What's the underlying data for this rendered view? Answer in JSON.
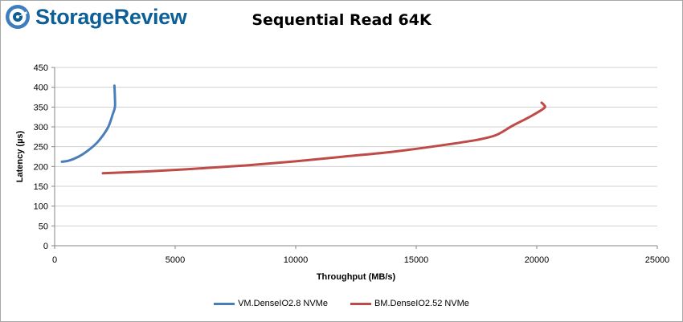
{
  "brand": {
    "name": "StorageReview",
    "color": "#0d5f95"
  },
  "chart_data": {
    "type": "line",
    "title": "Sequential Read 64K",
    "xlabel": "Throughput (MB/s)",
    "ylabel": "Latency (µs)",
    "xlim": [
      0,
      25000
    ],
    "ylim": [
      0,
      450
    ],
    "xticks": [
      0,
      5000,
      10000,
      15000,
      20000,
      25000
    ],
    "yticks": [
      0,
      50,
      100,
      150,
      200,
      250,
      300,
      350,
      400,
      450
    ],
    "grid": true,
    "legend_position": "bottom",
    "series": [
      {
        "name": "VM.DenseIO2.8 NVMe",
        "color": "#4a7ebb",
        "points": [
          [
            300,
            212
          ],
          [
            600,
            215
          ],
          [
            1000,
            225
          ],
          [
            1400,
            241
          ],
          [
            1800,
            263
          ],
          [
            2200,
            297
          ],
          [
            2400,
            330
          ],
          [
            2500,
            350
          ],
          [
            2500,
            375
          ],
          [
            2480,
            404
          ]
        ]
      },
      {
        "name": "BM.DenseIO2.52 NVMe",
        "color": "#be4b48",
        "points": [
          [
            2000,
            183
          ],
          [
            4000,
            188
          ],
          [
            6000,
            195
          ],
          [
            8000,
            203
          ],
          [
            10000,
            213
          ],
          [
            12000,
            225
          ],
          [
            14000,
            237
          ],
          [
            16000,
            253
          ],
          [
            17500,
            267
          ],
          [
            18300,
            279
          ],
          [
            19000,
            303
          ],
          [
            19700,
            325
          ],
          [
            20300,
            347
          ],
          [
            20300,
            355
          ],
          [
            20200,
            361
          ]
        ]
      }
    ]
  }
}
